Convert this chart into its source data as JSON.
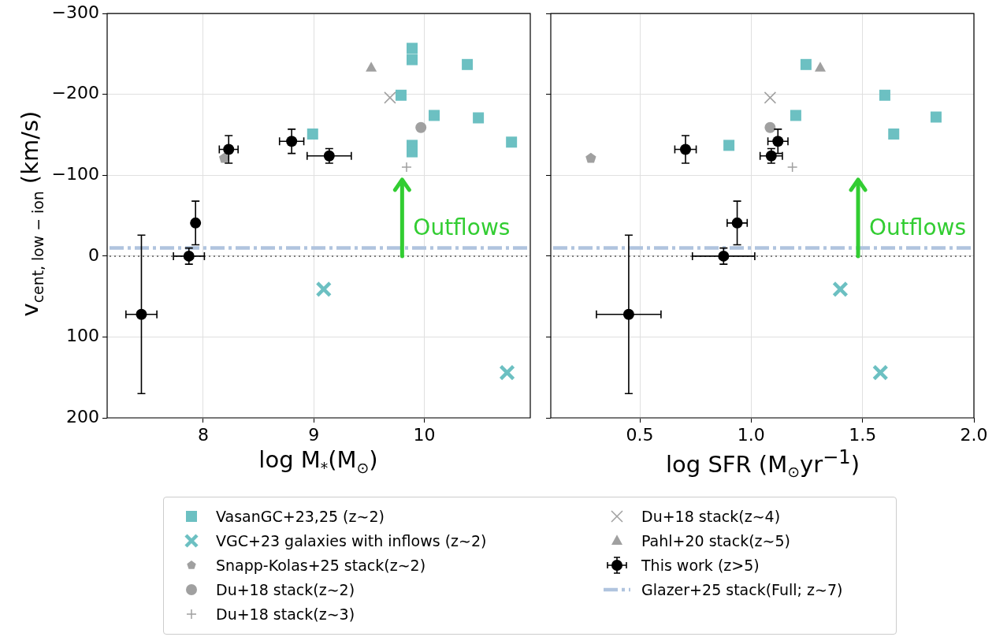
{
  "chart_data": [
    {
      "type": "scatter",
      "xlabel": "log M$_{*}$(M$_{⊙}$)",
      "ylabel": "v$_{cent, low − ion}$ (km/s)",
      "xlim": [
        7.13,
        10.96
      ],
      "xticks": [
        8,
        9,
        10
      ],
      "ylim": [
        200,
        -300
      ],
      "yticks": [
        {
          "value": -300,
          "label": "−300"
        },
        {
          "value": -200,
          "label": "−200"
        },
        {
          "value": -100,
          "label": "−100"
        },
        0,
        100,
        200
      ],
      "grid": true,
      "legend": "bottom",
      "annotations": [
        {
          "text": "Outflows",
          "x": 9.8,
          "y": 0
        }
      ],
      "ref_lines": [
        {
          "axis": "y",
          "value": 0,
          "color": "#808080",
          "line_style": "dotted"
        },
        {
          "axis": "y",
          "value": -10,
          "label": "Glazer+25 stack(Full; z∼7)",
          "color": "#b0c4de",
          "line_style": "dashdot"
        }
      ],
      "series": [
        {
          "name": "VasanGC+23,25 (z∼2)",
          "color": "#6cc0c2",
          "marker": "square",
          "x": [
            9.89,
            9.89,
            10.39,
            9.79,
            10.09,
            10.49,
            8.99,
            10.79,
            9.89,
            9.89
          ],
          "values": [
            -257,
            -243,
            -237,
            -199,
            -174,
            -171,
            -151,
            -141,
            -137,
            -129
          ]
        },
        {
          "name": "VGC+23 galaxies with inflows (z∼2)",
          "color": "#6cc0c2",
          "marker": "x",
          "x": [
            9.09,
            10.75
          ],
          "values": [
            41,
            144
          ]
        },
        {
          "name": "Snapp-Kolas+25 stack(z∼2)",
          "color": "#a0a0a0",
          "x": [
            8.19
          ],
          "values": [
            -121
          ]
        },
        {
          "name": "Du+18 stack(z∼2)",
          "color": "#a0a0a0",
          "marker": "circle",
          "x": [
            9.97
          ],
          "values": [
            -159
          ]
        },
        {
          "name": "Du+18 stack(z∼3)",
          "color": "#a0a0a0",
          "marker": "plus",
          "x": [
            9.84
          ],
          "values": [
            -110
          ]
        },
        {
          "name": "Du+18 stack(z∼4)",
          "color": "#a0a0a0",
          "marker": "cross",
          "x": [
            9.69
          ],
          "values": [
            -196
          ]
        },
        {
          "name": "Pahl+20 stack(z∼5)",
          "color": "#a0a0a0",
          "marker": "triangle",
          "x": [
            9.52
          ],
          "values": [
            -233
          ]
        },
        {
          "name": "This work (z>5)",
          "color": "#000000",
          "marker": "circle",
          "x": [
            7.44,
            7.87,
            7.93,
            8.23,
            8.8,
            9.14
          ],
          "values": [
            72,
            0,
            -41,
            -132,
            -142,
            -124
          ],
          "errors": [
            98,
            10,
            27,
            17,
            15,
            9
          ],
          "xerrors": [
            0.14,
            0.14,
            null,
            0.085,
            0.11,
            0.2
          ]
        }
      ]
    },
    {
      "type": "scatter",
      "xlabel": "log  SFR (M$_{⊙}$yr$^{−1}$)",
      "xlim": [
        0.1,
        2.0
      ],
      "xticks": [
        0.5,
        {
          "value": 1,
          "label": "1.0"
        },
        1.5,
        {
          "value": 2,
          "label": "2.0"
        }
      ],
      "ylim": [
        200,
        -300
      ],
      "yticks": [
        -300,
        -200,
        -100,
        0,
        100,
        200
      ],
      "tick_labels": "x",
      "grid": true,
      "annotations": [
        {
          "text": "Outflows",
          "x": 1.48,
          "y": 0
        }
      ],
      "ref_lines": [
        {
          "axis": "y",
          "value": 0,
          "color": "#808080",
          "line_style": "dotted"
        },
        {
          "axis": "y",
          "value": -10,
          "color": "#b0c4de",
          "line_style": "dashdot"
        }
      ],
      "series": [
        {
          "color": "#6cc0c2",
          "marker": "square",
          "x": [
            1.246,
            1.6,
            1.2,
            1.83,
            1.64,
            0.9
          ],
          "values": [
            -237,
            -199,
            -174,
            -172,
            -151,
            -137
          ]
        },
        {
          "color": "#6cc0c2",
          "marker": "x",
          "x": [
            1.4,
            1.58
          ],
          "values": [
            41,
            144
          ]
        },
        {
          "color": "#a0a0a0",
          "x": [
            0.28
          ],
          "values": [
            -121
          ]
        },
        {
          "color": "#a0a0a0",
          "marker": "circle",
          "x": [
            1.085
          ],
          "values": [
            -159
          ]
        },
        {
          "color": "#a0a0a0",
          "marker": "plus",
          "x": [
            1.185
          ],
          "values": [
            -110
          ]
        },
        {
          "color": "#a0a0a0",
          "marker": "cross",
          "x": [
            1.085
          ],
          "values": [
            -196
          ]
        },
        {
          "color": "#a0a0a0",
          "marker": "triangle",
          "x": [
            1.31
          ],
          "values": [
            -233
          ]
        },
        {
          "color": "#000000",
          "marker": "circle",
          "x": [
            0.45,
            0.876,
            0.937,
            0.705,
            1.12,
            1.09
          ],
          "values": [
            72,
            0,
            -41,
            -132,
            -142,
            -124
          ],
          "errors": [
            98,
            10,
            27,
            17,
            15,
            9
          ],
          "xerrors": [
            0.145,
            0.14,
            0.045,
            0.048,
            0.045,
            0.05
          ]
        }
      ]
    }
  ]
}
